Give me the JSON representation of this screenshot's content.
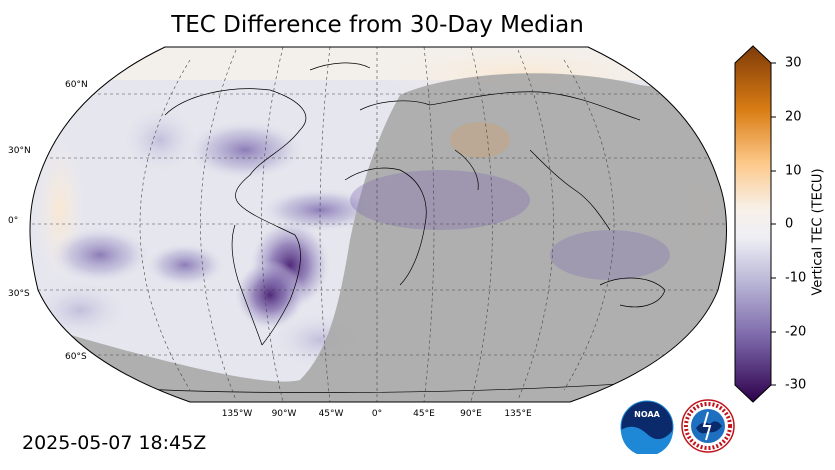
{
  "title": "TEC Difference from 30-Day Median",
  "timestamp": "2025-05-07 18:45Z",
  "map": {
    "projection": "Robinson",
    "lat_labels": [
      "60°N",
      "30°N",
      "0°",
      "30°S",
      "60°S"
    ],
    "lon_labels": [
      "135°W",
      "90°W",
      "45°W",
      "0°",
      "45°E",
      "90°E",
      "135°E"
    ],
    "night_shading": "gray overlay over eastern hemisphere"
  },
  "colorbar": {
    "label": "Vertical TEC (TECU)",
    "ticks": [
      "30",
      "20",
      "10",
      "0",
      "-10",
      "-20",
      "-30"
    ],
    "range": [
      -30,
      30
    ],
    "colormap": "purple (negative) to white to orange/brown (positive)"
  },
  "logos": {
    "noaa": "NOAA",
    "nws": "NATIONAL WEATHER SERVICE"
  },
  "colors": {
    "night": "#a9a9a9",
    "neg_strong": "#3b0f5f",
    "neutral": "#f2f2f2",
    "pos_strong": "#7f3b08"
  }
}
